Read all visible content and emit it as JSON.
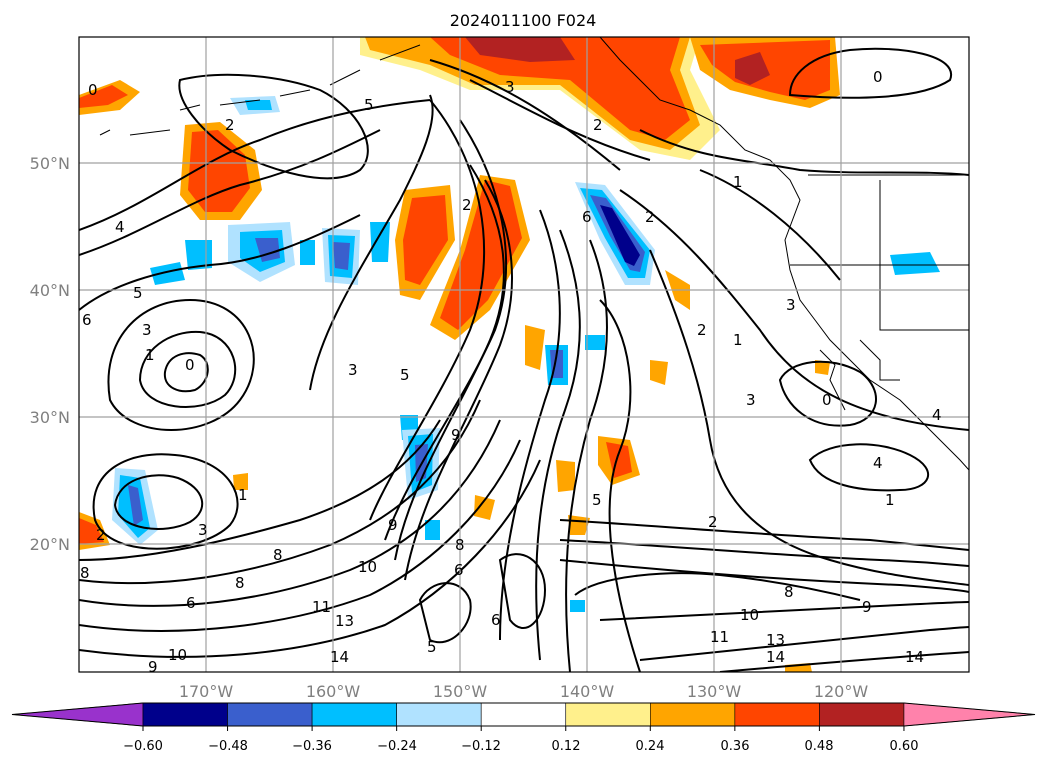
{
  "title": "2024011100 F024",
  "map": {
    "lat_labels": [
      "50°N",
      "40°N",
      "30°N",
      "20°N"
    ],
    "lon_labels": [
      "170°W",
      "160°W",
      "150°W",
      "140°W",
      "130°W",
      "120°W"
    ],
    "gridlines": true,
    "coastlines": true,
    "contour_labels": [
      "0",
      "2",
      "3",
      "5",
      "2",
      "1",
      "0",
      "2",
      "4",
      "5",
      "6",
      "3",
      "1",
      "0",
      "3",
      "5",
      "9",
      "2",
      "6",
      "1",
      "2",
      "3",
      "3",
      "4",
      "1",
      "3",
      "9",
      "8",
      "10",
      "8",
      "6",
      "11",
      "13",
      "14",
      "10",
      "8",
      "9",
      "1",
      "2",
      "5",
      "5",
      "6",
      "6",
      "8",
      "13",
      "14",
      "11",
      "10",
      "14",
      "2",
      "8",
      "9",
      "0",
      "4"
    ]
  },
  "colorbar": {
    "tick_labels": [
      "−0.60",
      "−0.48",
      "−0.36",
      "−0.24",
      "−0.12",
      "0.12",
      "0.24",
      "0.36",
      "0.48",
      "0.60"
    ],
    "bins": [
      {
        "color": "#9932cc"
      },
      {
        "color": "#00008b"
      },
      {
        "color": "#3a5fcd"
      },
      {
        "color": "#00bfff"
      },
      {
        "color": "#b0e2ff"
      },
      {
        "color": "#ffffff"
      },
      {
        "color": "#fff08c"
      },
      {
        "color": "#ffa500"
      },
      {
        "color": "#ff4500"
      },
      {
        "color": "#b22222"
      },
      {
        "color": "#ff82ab"
      }
    ]
  },
  "shading_colors": {
    "light_yellow": "#fff08c",
    "orange": "#ffa500",
    "red_orange": "#ff4500",
    "dark_red": "#b22222",
    "light_blue": "#b0e2ff",
    "blue": "#00bfff",
    "mid_blue": "#3a5fcd",
    "navy": "#00008b"
  }
}
